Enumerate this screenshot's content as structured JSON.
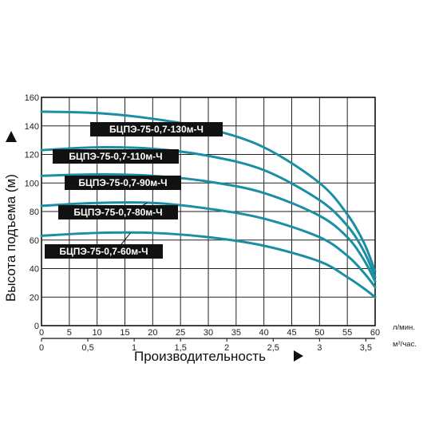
{
  "chart_data": {
    "type": "line",
    "title": "",
    "xlabel": "Производительность",
    "ylabel": "Высота подъема (м)",
    "x_units": [
      "л/мин.",
      "м³/час."
    ],
    "x_ticks_lpm": [
      "0",
      "5",
      "10",
      "15",
      "20",
      "25",
      "30",
      "35",
      "40",
      "45",
      "50",
      "55",
      "60"
    ],
    "x_ticks_m3h": [
      "0",
      "0,5",
      "1",
      "1,5",
      "2",
      "2,5",
      "3",
      "3,5"
    ],
    "y_ticks": [
      "0",
      "20",
      "40",
      "60",
      "80",
      "100",
      "120",
      "140",
      "160"
    ],
    "xlim": [
      0,
      60
    ],
    "ylim": [
      0,
      160
    ],
    "grid": true,
    "line_color": "#1a8fa3",
    "label_bg": "#111111",
    "series": [
      {
        "name": "БЦПЭ-75-0,7-130м-Ч",
        "x": [
          0,
          10,
          20,
          30,
          40,
          50,
          55,
          58,
          60
        ],
        "y": [
          150,
          149,
          145,
          138,
          125,
          100,
          78,
          58,
          38
        ]
      },
      {
        "name": "БЦПЭ-75-0,7-110м-Ч",
        "x": [
          0,
          10,
          20,
          30,
          40,
          50,
          55,
          58,
          60
        ],
        "y": [
          123,
          125,
          124,
          119,
          109,
          88,
          70,
          52,
          34
        ]
      },
      {
        "name": "БЦПЭ-75-0,7-90м-Ч",
        "x": [
          0,
          10,
          20,
          30,
          40,
          50,
          55,
          58,
          60
        ],
        "y": [
          105,
          106,
          105,
          101,
          93,
          77,
          62,
          46,
          31
        ]
      },
      {
        "name": "БЦПЭ-75-0,7-80м-Ч",
        "x": [
          0,
          10,
          20,
          30,
          40,
          50,
          55,
          58,
          60
        ],
        "y": [
          84,
          86,
          86,
          82,
          75,
          62,
          49,
          37,
          27
        ]
      },
      {
        "name": "БЦПЭ-75-0,7-60м-Ч",
        "x": [
          0,
          10,
          20,
          30,
          40,
          50,
          55,
          58,
          60
        ],
        "y": [
          63,
          65,
          65,
          62,
          56,
          45,
          34,
          26,
          20
        ]
      }
    ],
    "annotations": [
      {
        "series": 0,
        "text": "БЦПЭ-75-0,7-130м-Ч",
        "point_x": 25
      },
      {
        "series": 1,
        "text": "БЦПЭ-75-0,7-110м-Ч",
        "point_x": 23
      },
      {
        "series": 2,
        "text": "БЦПЭ-75-0,7-90м-Ч",
        "point_x": 21
      },
      {
        "series": 3,
        "text": "БЦПЭ-75-0,7-80м-Ч",
        "point_x": 19
      },
      {
        "series": 4,
        "text": "БЦПЭ-75-0,7-60м-Ч",
        "point_x": 16
      }
    ]
  }
}
